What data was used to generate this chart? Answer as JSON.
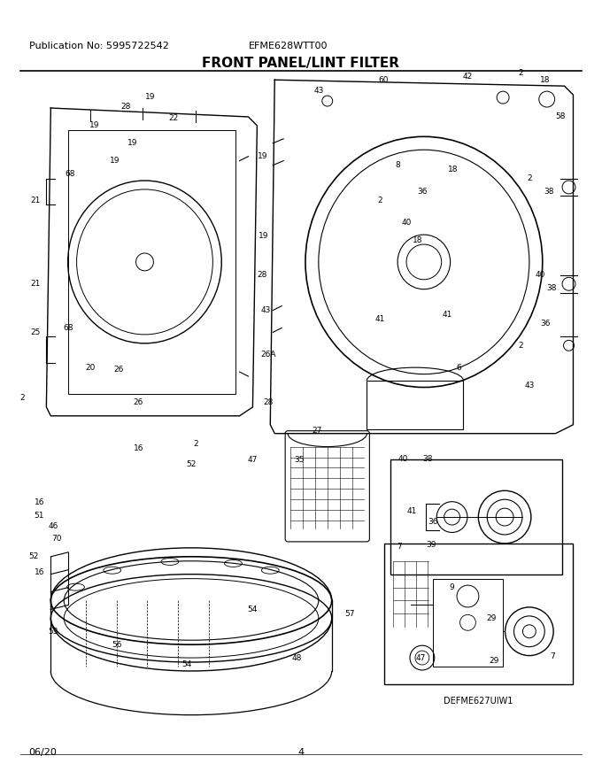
{
  "pub_no": "Publication No: 5995722542",
  "model": "EFME628WTT00",
  "title": "FRONT PANEL/LINT FILTER",
  "date": "06/20",
  "page": "4",
  "diagram_label": "DEFME627UIW1",
  "bg_color": "#ffffff",
  "line_color": "#000000",
  "title_fontsize": 11,
  "header_fontsize": 8,
  "footer_fontsize": 8,
  "label_fontsize": 7,
  "fig_width": 6.8,
  "fig_height": 8.8,
  "dpi": 100
}
